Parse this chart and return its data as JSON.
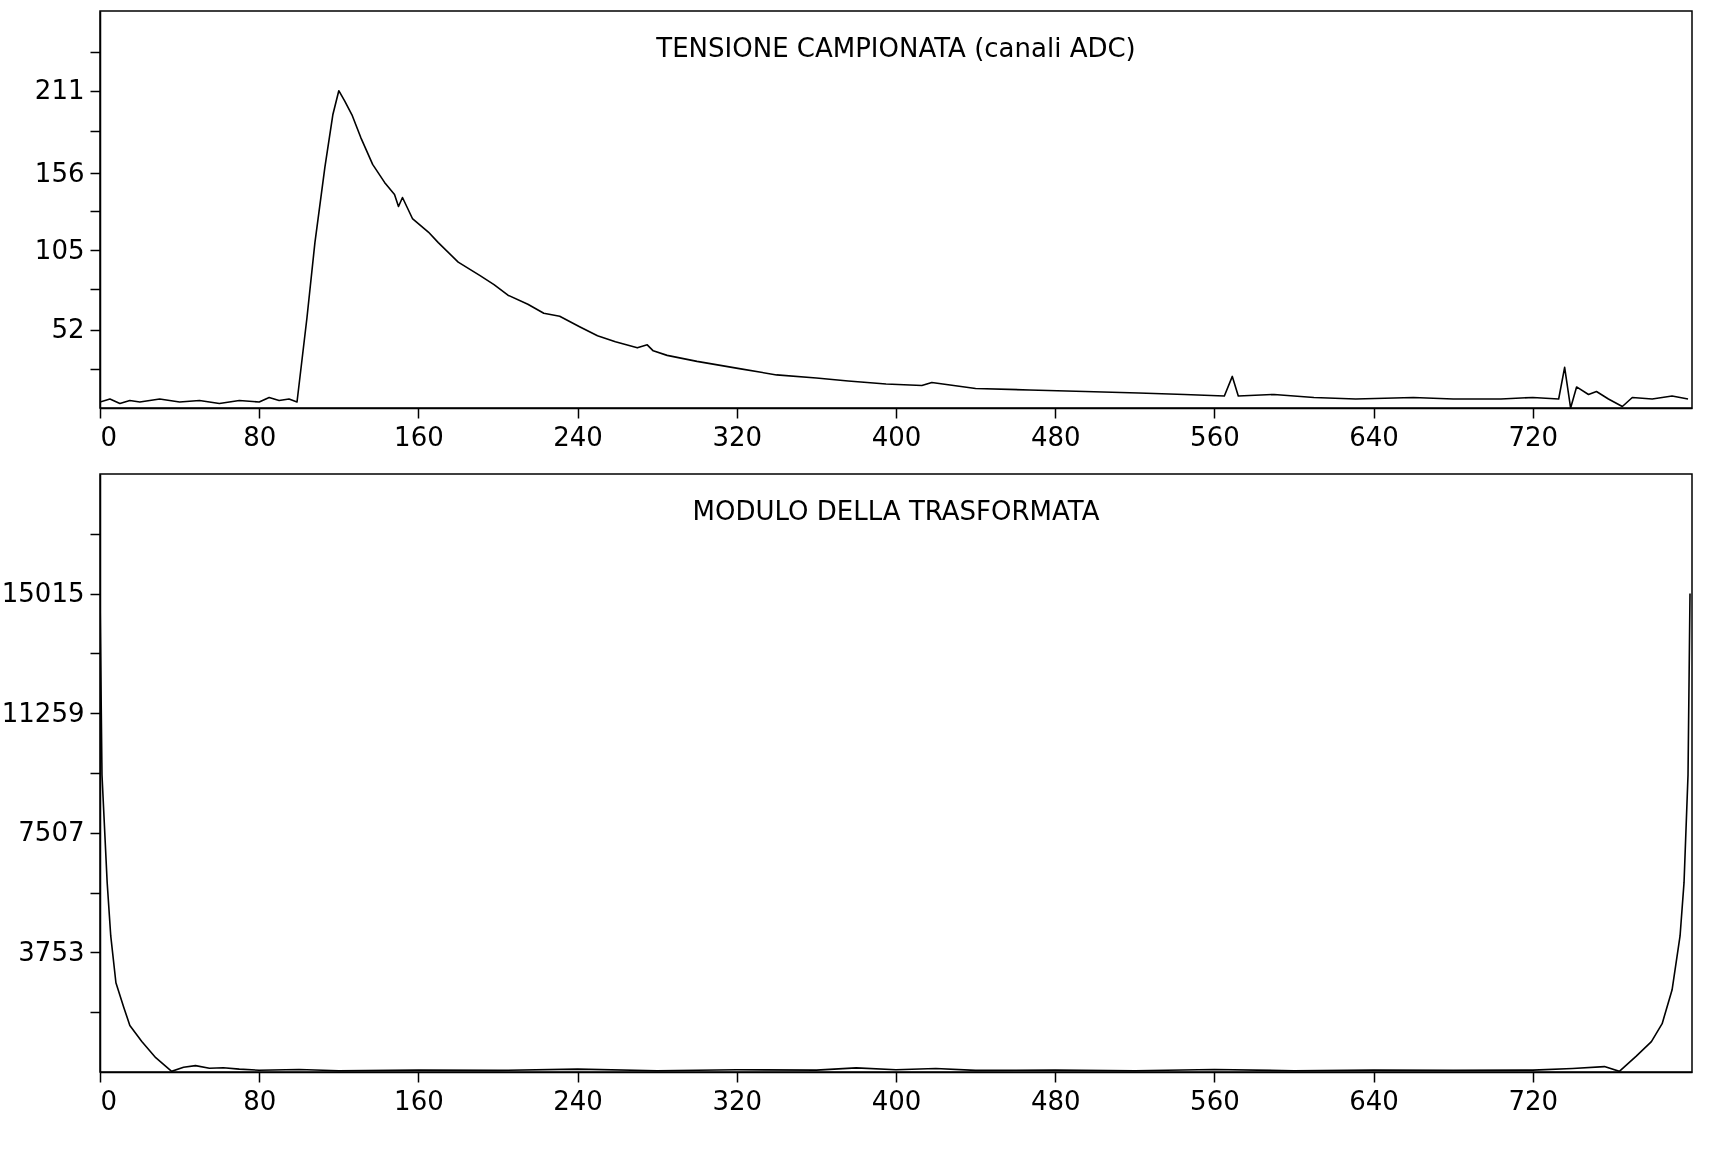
{
  "chart_data": [
    {
      "type": "line",
      "title": "TENSIONE CAMPIONATA (canali ADC)",
      "xlim": [
        0,
        800
      ],
      "xticks": [
        0,
        80,
        160,
        240,
        320,
        400,
        480,
        560,
        640,
        720
      ],
      "ylim": [
        0,
        264
      ],
      "yticks": [
        {
          "value": 26,
          "label": null
        },
        52,
        {
          "value": 79,
          "label": null
        },
        105,
        {
          "value": 131,
          "label": null
        },
        156,
        {
          "value": 184,
          "label": null
        },
        211,
        {
          "value": 237,
          "label": null
        }
      ],
      "grid": false,
      "x": [
        0,
        5,
        10,
        15,
        20,
        30,
        40,
        50,
        60,
        70,
        80,
        85,
        90,
        95,
        99,
        104,
        108,
        113,
        117,
        120,
        123,
        126.6,
        131,
        137,
        143,
        148,
        150,
        152,
        157,
        165,
        170,
        180,
        191,
        198,
        205,
        215,
        223,
        231,
        241,
        250,
        259,
        270,
        275,
        278,
        285,
        300,
        322,
        340,
        360,
        376,
        395,
        413,
        418,
        440,
        467,
        495,
        522,
        545,
        565,
        569,
        572,
        590,
        610,
        631,
        660,
        680,
        704,
        720,
        733,
        736,
        739,
        742,
        748,
        752,
        758,
        765,
        770,
        780,
        790,
        798
      ],
      "series": [
        {
          "color": "#000000",
          "values": [
            4,
            6,
            3,
            5,
            4,
            6,
            4,
            5,
            3,
            5,
            4,
            7,
            5,
            6,
            4,
            60,
            110,
            160,
            195,
            211,
            204,
            195,
            180,
            162,
            150,
            142,
            134,
            140,
            126,
            117,
            110,
            97,
            88,
            82,
            75,
            69,
            63,
            61,
            54,
            48,
            44,
            40,
            42,
            38,
            35,
            31,
            26,
            22,
            20,
            18,
            16,
            15,
            17,
            13,
            12,
            11,
            10,
            9,
            8,
            21,
            8,
            9,
            7,
            6,
            7,
            6,
            6,
            7,
            6,
            27,
            0,
            14,
            9,
            11,
            6,
            1,
            7,
            6,
            8,
            6
          ]
        }
      ]
    },
    {
      "type": "line",
      "title": "MODULO DELLA TRASFORMATA",
      "xlim": [
        0,
        800
      ],
      "xticks": [
        0,
        80,
        160,
        240,
        320,
        400,
        480,
        560,
        640,
        720
      ],
      "ylim": [
        0,
        18768
      ],
      "yticks": [
        {
          "value": 1877,
          "label": null
        },
        3753,
        {
          "value": 5630,
          "label": null
        },
        7507,
        {
          "value": 9383,
          "label": null
        },
        11259,
        {
          "value": 13137,
          "label": null
        },
        15015,
        {
          "value": 16891,
          "label": null
        }
      ],
      "grid": false,
      "x": [
        0,
        1,
        3.6,
        5.4,
        8,
        12,
        15,
        21,
        28,
        36,
        42,
        48,
        55,
        62,
        70,
        80,
        100,
        120,
        160,
        200,
        240,
        280,
        320,
        360,
        380,
        400,
        420,
        440,
        480,
        520,
        560,
        600,
        640,
        680,
        720,
        740,
        756,
        763.5,
        772,
        779.6,
        785,
        790,
        794,
        796,
        798,
        799
      ],
      "series": [
        {
          "color": "#000000",
          "values": [
            15015,
            9320,
            5950,
            4270,
            2800,
            2020,
            1460,
            955,
            450,
            20,
            150,
            200,
            120,
            135,
            90,
            56,
            80,
            40,
            60,
            50,
            90,
            40,
            70,
            60,
            130,
            70,
            110,
            50,
            60,
            40,
            80,
            40,
            60,
            50,
            60,
            110,
            170,
            20,
            500,
            955,
            1516,
            2580,
            4270,
            5950,
            9320,
            15015
          ]
        }
      ]
    }
  ]
}
